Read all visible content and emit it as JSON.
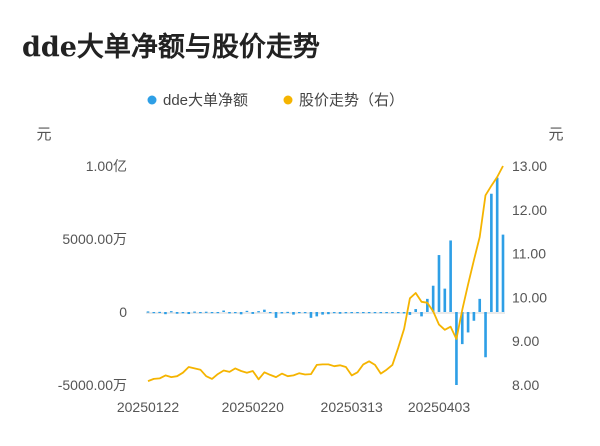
{
  "chart_data": {
    "type": "bar+line",
    "title": "dde大单净额与股价走势",
    "legend": [
      {
        "name": "dde大单净额",
        "color": "#2e9fe6",
        "marker": "circle"
      },
      {
        "name": "股价走势（右）",
        "color": "#f5b400",
        "marker": "circle"
      }
    ],
    "legend_position": "top-center",
    "left_axis": {
      "unit": "元",
      "ticks": [
        {
          "value": 10000,
          "label": "1.00亿"
        },
        {
          "value": 5000,
          "label": "5000.00万"
        },
        {
          "value": 0,
          "label": "0"
        },
        {
          "value": -5000,
          "label": "-5000.00万"
        }
      ],
      "range": [
        -5000,
        10000
      ],
      "value_unit": "万元"
    },
    "right_axis": {
      "unit": "元",
      "ticks": [
        "13.00",
        "12.00",
        "11.00",
        "10.00",
        "9.00",
        "8.00"
      ],
      "range": [
        8,
        13
      ]
    },
    "x_ticks": [
      {
        "index": 0,
        "label": "20250122"
      },
      {
        "index": 18,
        "label": "20250220"
      },
      {
        "index": 35,
        "label": "20250313"
      },
      {
        "index": 50,
        "label": "20250403"
      }
    ],
    "grid": false,
    "bars": [
      40,
      -30,
      10,
      -150,
      60,
      -120,
      -90,
      -140,
      30,
      -80,
      20,
      -40,
      -30,
      100,
      -100,
      -20,
      -160,
      80,
      -130,
      60,
      160,
      -30,
      -400,
      -100,
      10,
      -180,
      -40,
      -50,
      -400,
      -300,
      -180,
      -150,
      -80,
      -120,
      -90,
      -60,
      -30,
      -50,
      -50,
      -20,
      -50,
      -20,
      -40,
      -50,
      -100,
      -200,
      200,
      -300,
      900,
      1800,
      3900,
      1600,
      4900,
      -5000,
      -2200,
      -1400,
      -600,
      900,
      -3100,
      8100,
      9200,
      5300
    ],
    "prices": [
      8.09,
      8.14,
      8.15,
      8.22,
      8.18,
      8.2,
      8.28,
      8.41,
      8.38,
      8.35,
      8.2,
      8.14,
      8.25,
      8.33,
      8.3,
      8.38,
      8.32,
      8.28,
      8.32,
      8.13,
      8.29,
      8.23,
      8.18,
      8.26,
      8.2,
      8.22,
      8.27,
      8.24,
      8.25,
      8.46,
      8.47,
      8.47,
      8.43,
      8.45,
      8.41,
      8.22,
      8.29,
      8.47,
      8.54,
      8.46,
      8.26,
      8.35,
      8.46,
      8.85,
      9.28,
      9.98,
      10.1,
      9.9,
      9.88,
      9.68,
      9.38,
      9.26,
      9.33,
      9.05,
      9.72,
      10.3,
      10.85,
      11.38,
      12.33,
      12.55,
      12.75,
      13.0
    ]
  }
}
